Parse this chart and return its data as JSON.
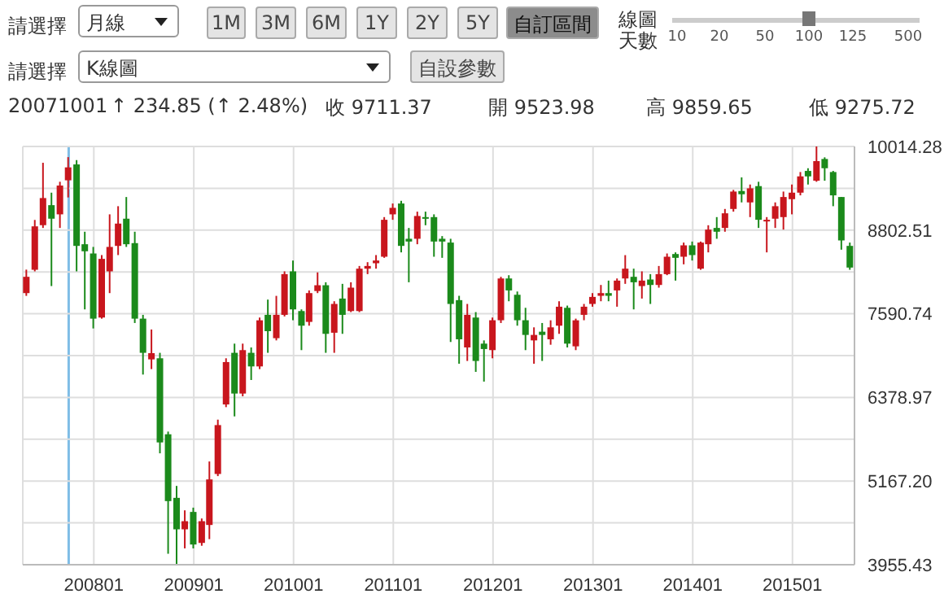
{
  "chart_data": {
    "type": "candlestick",
    "x": [
      "2007-05",
      "2007-06",
      "2007-07",
      "2007-08",
      "2007-09",
      "2007-10",
      "2007-11",
      "2007-12",
      "2008-01",
      "2008-02",
      "2008-03",
      "2008-04",
      "2008-05",
      "2008-06",
      "2008-07",
      "2008-08",
      "2008-09",
      "2008-10",
      "2008-11",
      "2008-12",
      "2009-01",
      "2009-02",
      "2009-03",
      "2009-04",
      "2009-05",
      "2009-06",
      "2009-07",
      "2009-08",
      "2009-09",
      "2009-10",
      "2009-11",
      "2009-12",
      "2010-01",
      "2010-02",
      "2010-03",
      "2010-04",
      "2010-05",
      "2010-06",
      "2010-07",
      "2010-08",
      "2010-09",
      "2010-10",
      "2010-11",
      "2010-12",
      "2011-01",
      "2011-02",
      "2011-03",
      "2011-04",
      "2011-05",
      "2011-06",
      "2011-07",
      "2011-08",
      "2011-09",
      "2011-10",
      "2011-11",
      "2011-12",
      "2012-01",
      "2012-02",
      "2012-03",
      "2012-04",
      "2012-05",
      "2012-06",
      "2012-07",
      "2012-08",
      "2012-09",
      "2012-10",
      "2012-11",
      "2012-12",
      "2013-01",
      "2013-02",
      "2013-03",
      "2013-04",
      "2013-05",
      "2013-06",
      "2013-07",
      "2013-08",
      "2013-09",
      "2013-10",
      "2013-11",
      "2013-12",
      "2014-01",
      "2014-02",
      "2014-03",
      "2014-04",
      "2014-05",
      "2014-06",
      "2014-07",
      "2014-08",
      "2014-09",
      "2014-10",
      "2014-11",
      "2014-12",
      "2015-01",
      "2015-02",
      "2015-03",
      "2015-04",
      "2015-05",
      "2015-06",
      "2015-07",
      "2015-08"
    ],
    "ohlc": [
      [
        7890,
        8230,
        7850,
        8126
      ],
      [
        8228,
        8950,
        8205,
        8857
      ],
      [
        8874,
        9778,
        8834,
        9267
      ],
      [
        9164,
        9345,
        7992,
        8968
      ],
      [
        9031,
        9503,
        8834,
        9448
      ],
      [
        9523.98,
        9859.65,
        9275.72,
        9711.37
      ],
      [
        9754,
        9817,
        8205,
        8574
      ],
      [
        8598,
        8779,
        7654,
        8496
      ],
      [
        8464,
        8559,
        7378,
        7520
      ],
      [
        7536,
        8441,
        7520,
        8386
      ],
      [
        8205,
        9031,
        7890,
        8559
      ],
      [
        8574,
        9149,
        8441,
        8897
      ],
      [
        8968,
        9282,
        8559,
        8598
      ],
      [
        8614,
        8779,
        7457,
        7520
      ],
      [
        7520,
        7575,
        6710,
        7025
      ],
      [
        6930,
        7363,
        6789,
        7020
      ],
      [
        6946,
        7025,
        5569,
        5727
      ],
      [
        5845,
        5884,
        4114,
        4877
      ],
      [
        4924,
        5097,
        3955.43,
        4468
      ],
      [
        4468,
        4743,
        4192,
        4586
      ],
      [
        4720,
        4782,
        4192,
        4248
      ],
      [
        4271,
        4625,
        4230,
        4586
      ],
      [
        4531,
        5451,
        4326,
        5191
      ],
      [
        5270,
        6057,
        5239,
        5978
      ],
      [
        6277,
        6946,
        6238,
        6891
      ],
      [
        7025,
        7158,
        6104,
        6435
      ],
      [
        6435,
        7158,
        6395,
        7064
      ],
      [
        7025,
        7103,
        6631,
        6828
      ],
      [
        6828,
        7536,
        6789,
        7496
      ],
      [
        7575,
        7796,
        7025,
        7339
      ],
      [
        7237,
        7850,
        7205,
        7575
      ],
      [
        7575,
        8205,
        7552,
        8165
      ],
      [
        8205,
        8362,
        7497,
        7654
      ],
      [
        7630,
        7654,
        7064,
        7418
      ],
      [
        7473,
        7929,
        7418,
        7890
      ],
      [
        7920,
        8190,
        7890,
        8004
      ],
      [
        8004,
        8047,
        7025,
        7300
      ],
      [
        7316,
        7772,
        7025,
        7733
      ],
      [
        7811,
        8024,
        7300,
        7575
      ],
      [
        7630,
        8047,
        7615,
        7969
      ],
      [
        7630,
        8283,
        7615,
        8244
      ],
      [
        8244,
        8338,
        8165,
        8283
      ],
      [
        8323,
        8441,
        8244,
        8362
      ],
      [
        8417,
        8991,
        8401,
        8952
      ],
      [
        9031,
        9188,
        8952,
        9125
      ],
      [
        9188,
        9227,
        8480,
        8574
      ],
      [
        8677,
        8834,
        8047,
        8637
      ],
      [
        8677,
        9070,
        8598,
        9007
      ],
      [
        8991,
        9070,
        8873,
        8967
      ],
      [
        8991,
        9031,
        8417,
        8637
      ],
      [
        8677,
        8716,
        8401,
        8637
      ],
      [
        8622,
        8677,
        7182,
        7733
      ],
      [
        7788,
        7851,
        6867,
        7221
      ],
      [
        7103,
        7733,
        6907,
        7575
      ],
      [
        7536,
        7615,
        6749,
        6907
      ],
      [
        7158,
        7205,
        6608,
        7080
      ],
      [
        7064,
        7536,
        6946,
        7497
      ],
      [
        7497,
        8126,
        7457,
        8102
      ],
      [
        8102,
        8149,
        7772,
        7929
      ],
      [
        7866,
        7913,
        7418,
        7497
      ],
      [
        7497,
        7677,
        7064,
        7284
      ],
      [
        7205,
        7394,
        6867,
        7284
      ],
      [
        7331,
        7457,
        6907,
        7284
      ],
      [
        7221,
        7496,
        7142,
        7394
      ],
      [
        7418,
        7772,
        7300,
        7693
      ],
      [
        7677,
        7709,
        7103,
        7158
      ],
      [
        7119,
        7520,
        7064,
        7496
      ],
      [
        7575,
        7733,
        7497,
        7693
      ],
      [
        7733,
        7890,
        7693,
        7835
      ],
      [
        7851,
        8008,
        7772,
        7890
      ],
      [
        7890,
        8071,
        7772,
        7851
      ],
      [
        7929,
        8102,
        7693,
        8071
      ],
      [
        8102,
        8440,
        8024,
        8244
      ],
      [
        8126,
        8244,
        7654,
        8047
      ],
      [
        7992,
        8205,
        7811,
        8071
      ],
      [
        8087,
        8165,
        7733,
        8008
      ],
      [
        8008,
        8283,
        7969,
        8165
      ],
      [
        8165,
        8464,
        8150,
        8417
      ],
      [
        8456,
        8480,
        8071,
        8401
      ],
      [
        8417,
        8622,
        8307,
        8582
      ],
      [
        8582,
        8637,
        8362,
        8441
      ],
      [
        8244,
        8637,
        8228,
        8622
      ],
      [
        8598,
        8873,
        8480,
        8810
      ],
      [
        8834,
        8991,
        8677,
        8779
      ],
      [
        8834,
        9109,
        8779,
        9046
      ],
      [
        9109,
        9385,
        9070,
        9361
      ],
      [
        9369,
        9566,
        9204,
        9322
      ],
      [
        9204,
        9463,
        8991,
        9408
      ],
      [
        9440,
        9503,
        8834,
        8952
      ],
      [
        8928,
        8991,
        8480,
        8952
      ],
      [
        8968,
        9204,
        8834,
        9149
      ],
      [
        8991,
        9361,
        8810,
        9282
      ],
      [
        9251,
        9463,
        9031,
        9345
      ],
      [
        9345,
        9644,
        9306,
        9581
      ],
      [
        9660,
        9699,
        9463,
        9581
      ],
      [
        9518,
        10014.28,
        9503,
        9802
      ],
      [
        9833,
        9857,
        9518,
        9699
      ],
      [
        9644,
        9660,
        9149,
        9306
      ],
      [
        9282,
        9282,
        8519,
        8653
      ],
      [
        8574,
        8622,
        8228,
        8260
      ]
    ],
    "colors": [
      "#c8161d",
      "#c8161d",
      "#c8161d",
      "#1b8a1b",
      "#c8161d",
      "#c8161d",
      "#1b8a1b",
      "#1b8a1b",
      "#1b8a1b",
      "#c8161d",
      "#c8161d",
      "#c8161d",
      "#1b8a1b",
      "#1b8a1b",
      "#1b8a1b",
      "#c8161d",
      "#1b8a1b",
      "#1b8a1b",
      "#1b8a1b",
      "#c8161d",
      "#1b8a1b",
      "#c8161d",
      "#c8161d",
      "#c8161d",
      "#c8161d",
      "#1b8a1b",
      "#c8161d",
      "#1b8a1b",
      "#c8161d",
      "#1b8a1b",
      "#c8161d",
      "#c8161d",
      "#1b8a1b",
      "#1b8a1b",
      "#c8161d",
      "#c8161d",
      "#1b8a1b",
      "#c8161d",
      "#1b8a1b",
      "#c8161d",
      "#c8161d",
      "#c8161d",
      "#c8161d",
      "#c8161d",
      "#c8161d",
      "#1b8a1b",
      "#1b8a1b",
      "#c8161d",
      "#1b8a1b",
      "#1b8a1b",
      "#1b8a1b",
      "#1b8a1b",
      "#1b8a1b",
      "#c8161d",
      "#1b8a1b",
      "#1b8a1b",
      "#c8161d",
      "#c8161d",
      "#1b8a1b",
      "#1b8a1b",
      "#1b8a1b",
      "#c8161d",
      "#1b8a1b",
      "#c8161d",
      "#c8161d",
      "#1b8a1b",
      "#c8161d",
      "#c8161d",
      "#c8161d",
      "#c8161d",
      "#1b8a1b",
      "#c8161d",
      "#c8161d",
      "#1b8a1b",
      "#c8161d",
      "#1b8a1b",
      "#c8161d",
      "#c8161d",
      "#1b8a1b",
      "#c8161d",
      "#1b8a1b",
      "#c8161d",
      "#c8161d",
      "#1b8a1b",
      "#c8161d",
      "#c8161d",
      "#1b8a1b",
      "#c8161d",
      "#1b8a1b",
      "#c8161d",
      "#c8161d",
      "#c8161d",
      "#c8161d",
      "#c8161d",
      "#1b8a1b",
      "#c8161d",
      "#1b8a1b",
      "#1b8a1b",
      "#1b8a1b",
      "#1b8a1b"
    ],
    "xlim": [
      "2007-04-16",
      "2015-08-16"
    ],
    "xticks": [
      {
        "value": "2008-01",
        "label": "200801"
      },
      {
        "value": "2009-01",
        "label": "200901"
      },
      {
        "value": "2010-01",
        "label": "201001"
      },
      {
        "value": "2011-01",
        "label": "201101"
      },
      {
        "value": "2012-01",
        "label": "201201"
      },
      {
        "value": "2013-01",
        "label": "201301"
      },
      {
        "value": "2014-01",
        "label": "201401"
      },
      {
        "value": "2015-01",
        "label": "201501"
      }
    ],
    "ylim": [
      3955.43,
      10014.28
    ],
    "yticks": [
      3955.43,
      {
        "value": 4561.315,
        "label": null
      },
      {
        "value": 5167.2,
        "label": "5167.20"
      },
      {
        "value": 5773.085,
        "label": null
      },
      6378.97,
      {
        "value": 6984.855,
        "label": null
      },
      7590.74,
      {
        "value": 8196.625,
        "label": null
      },
      8802.51,
      {
        "value": 9408.395,
        "label": null
      },
      10014.28
    ],
    "grid": true,
    "ref_lines": [
      {
        "axis": "x",
        "value": "2007-10",
        "color": "#7fbde6"
      }
    ],
    "annotations": [
      "請選擇",
      "月線",
      "1M",
      "3M",
      "6M",
      "1Y",
      "2Y",
      "5Y",
      "自訂區間",
      "線圖",
      "天數",
      "10",
      "20",
      "50",
      "100",
      "125",
      "500",
      "請選擇",
      "K線圖",
      "自設參數",
      "20071001",
      "↑ 234.85 (↑ 2.48%)",
      "收 9711.37",
      "開 9523.98",
      "高 9859.65",
      "低 9275.72"
    ]
  }
}
